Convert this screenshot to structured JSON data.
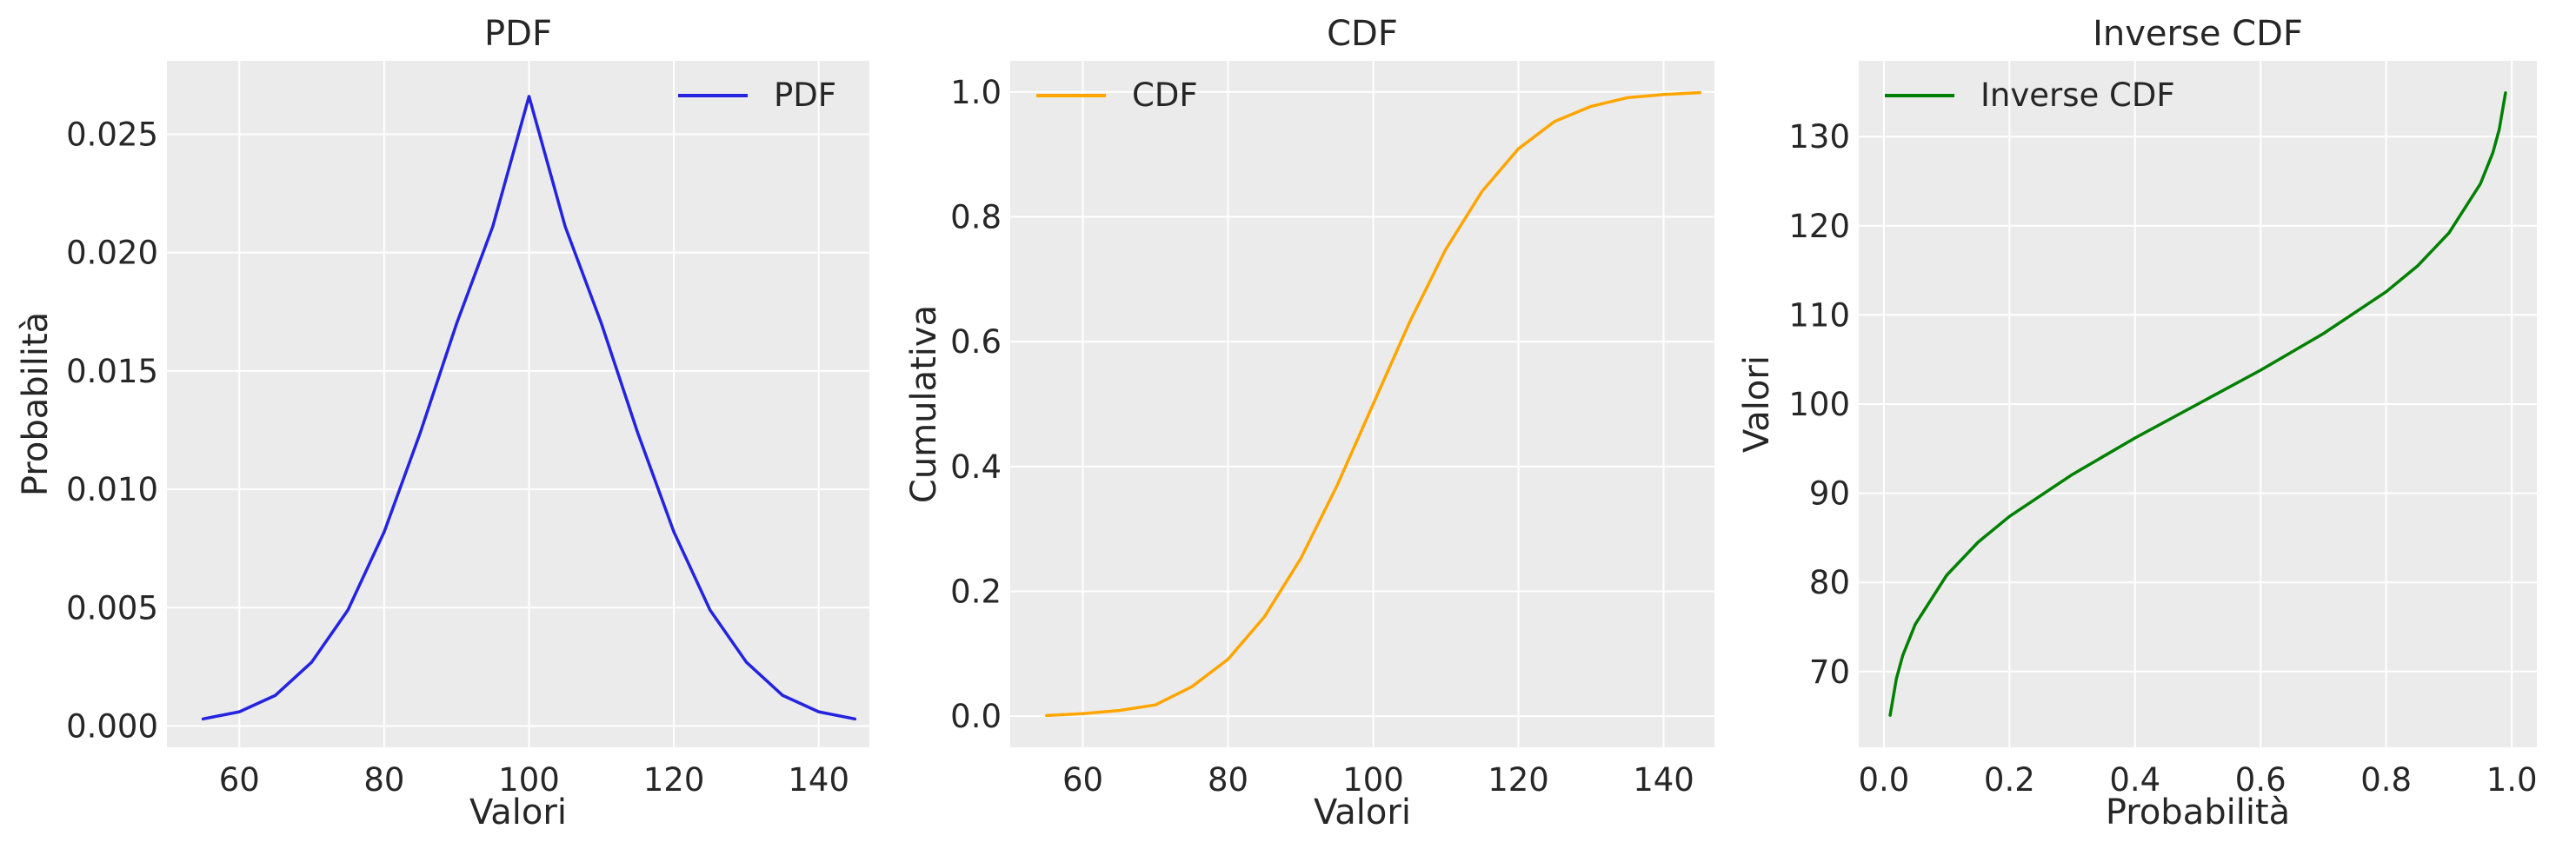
{
  "figure": {
    "background": "#ffffff",
    "axes_facecolor": "#ebebeb",
    "grid_color": "#ffffff",
    "text_color": "#262626"
  },
  "chart_data": [
    {
      "type": "line",
      "title": "PDF",
      "xlabel": "Valori",
      "ylabel": "Probabilità",
      "xlim": [
        50,
        147
      ],
      "ylim": [
        -0.0009,
        0.0281
      ],
      "xticks": [
        60,
        80,
        100,
        120,
        140
      ],
      "xtick_labels": [
        "60",
        "80",
        "100",
        "120",
        "140"
      ],
      "yticks": [
        0.0,
        0.005,
        0.01,
        0.015,
        0.02,
        0.025
      ],
      "ytick_labels": [
        "0.000",
        "0.005",
        "0.010",
        "0.015",
        "0.020",
        "0.025"
      ],
      "grid": true,
      "legend": {
        "position": "upper-right"
      },
      "series": [
        {
          "name": "PDF",
          "color": "#2323e0",
          "x": [
            55,
            60,
            65,
            70,
            75,
            80,
            85,
            90,
            95,
            100,
            105,
            110,
            115,
            120,
            125,
            130,
            135,
            140,
            145
          ],
          "y": [
            0.0003,
            0.0006,
            0.0013,
            0.0027,
            0.0049,
            0.0082,
            0.0124,
            0.017,
            0.0211,
            0.0266,
            0.0211,
            0.017,
            0.0124,
            0.0082,
            0.0049,
            0.0027,
            0.0013,
            0.0006,
            0.0003
          ]
        }
      ]
    },
    {
      "type": "line",
      "title": "CDF",
      "xlabel": "Valori",
      "ylabel": "Cumulativa",
      "xlim": [
        50,
        147
      ],
      "ylim": [
        -0.05,
        1.05
      ],
      "xticks": [
        60,
        80,
        100,
        120,
        140
      ],
      "xtick_labels": [
        "60",
        "80",
        "100",
        "120",
        "140"
      ],
      "yticks": [
        0.0,
        0.2,
        0.4,
        0.6,
        0.8,
        1.0
      ],
      "ytick_labels": [
        "0.0",
        "0.2",
        "0.4",
        "0.6",
        "0.8",
        "1.0"
      ],
      "grid": true,
      "legend": {
        "position": "upper-left"
      },
      "series": [
        {
          "name": "CDF",
          "color": "#ffa500",
          "x": [
            55,
            60,
            65,
            70,
            75,
            80,
            85,
            90,
            95,
            100,
            105,
            110,
            115,
            120,
            125,
            130,
            135,
            140,
            145
          ],
          "y": [
            0.001,
            0.004,
            0.009,
            0.018,
            0.047,
            0.091,
            0.159,
            0.252,
            0.369,
            0.5,
            0.631,
            0.748,
            0.841,
            0.909,
            0.953,
            0.977,
            0.991,
            0.996,
            0.999
          ]
        }
      ]
    },
    {
      "type": "line",
      "title": "Inverse CDF",
      "xlabel": "Probabilità",
      "ylabel": "Valori",
      "xlim": [
        -0.04,
        1.04
      ],
      "ylim": [
        61.5,
        138.5
      ],
      "xticks": [
        0.0,
        0.2,
        0.4,
        0.6,
        0.8,
        1.0
      ],
      "xtick_labels": [
        "0.0",
        "0.2",
        "0.4",
        "0.6",
        "0.8",
        "1.0"
      ],
      "yticks": [
        70,
        80,
        90,
        100,
        110,
        120,
        130
      ],
      "ytick_labels": [
        "70",
        "80",
        "90",
        "100",
        "110",
        "120",
        "130"
      ],
      "grid": true,
      "legend": {
        "position": "upper-left"
      },
      "series": [
        {
          "name": "Inverse CDF",
          "color": "#008000",
          "x": [
            0.01,
            0.02,
            0.03,
            0.05,
            0.1,
            0.15,
            0.2,
            0.3,
            0.4,
            0.5,
            0.6,
            0.7,
            0.8,
            0.85,
            0.9,
            0.95,
            0.97,
            0.98,
            0.99
          ],
          "y": [
            65.1,
            69.2,
            71.8,
            75.3,
            80.8,
            84.5,
            87.4,
            92.1,
            96.2,
            100.0,
            103.8,
            107.9,
            112.6,
            115.5,
            119.2,
            124.7,
            128.2,
            130.8,
            134.9
          ]
        }
      ]
    }
  ]
}
